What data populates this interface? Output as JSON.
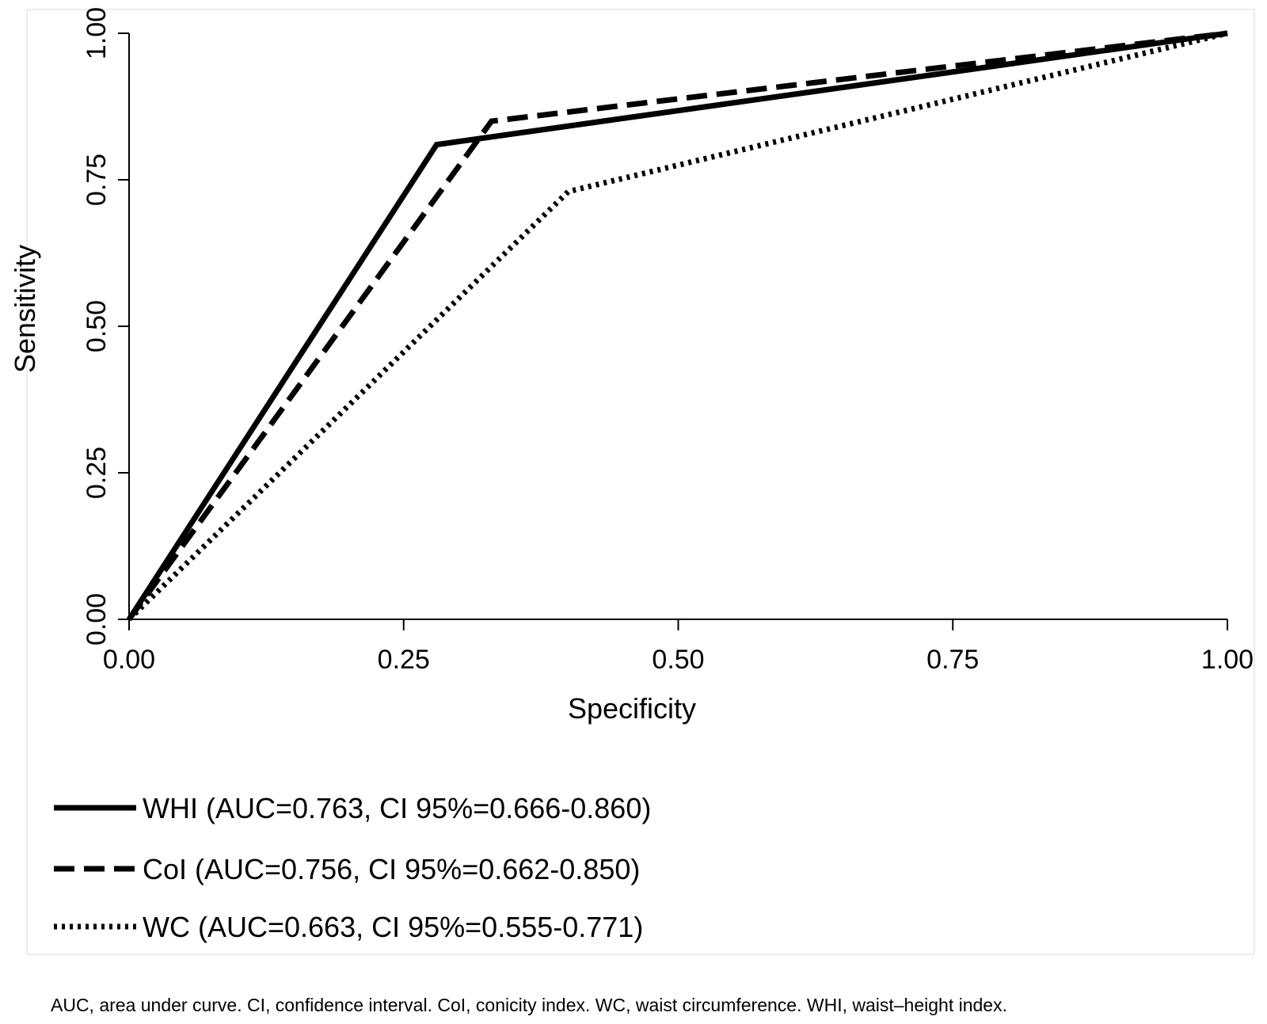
{
  "chart_data": {
    "type": "line",
    "title": "",
    "xlabel": "Specificity",
    "ylabel": "Sensitivity",
    "xlim": [
      0,
      1
    ],
    "ylim": [
      0,
      1
    ],
    "x_ticks": [
      "0.00",
      "0.25",
      "0.50",
      "0.75",
      "1.00"
    ],
    "y_ticks": [
      "0.00",
      "0.25",
      "0.50",
      "0.75",
      "1.00"
    ],
    "grid": false,
    "legend_position": "bottom",
    "series": [
      {
        "name": "WHI",
        "legend_label": "WHI (AUC=0.763, CI 95%=0.666-0.860)",
        "line_style": "solid",
        "x": [
          0.0,
          0.28,
          1.0
        ],
        "y": [
          0.0,
          0.81,
          1.0
        ]
      },
      {
        "name": "CoI",
        "legend_label": "CoI (AUC=0.756, CI 95%=0.662-0.850)",
        "line_style": "dashed",
        "x": [
          0.0,
          0.33,
          1.0
        ],
        "y": [
          0.0,
          0.85,
          1.0
        ]
      },
      {
        "name": "WC",
        "legend_label": "WC (AUC=0.663, CI 95%=0.555-0.771)",
        "line_style": "dotted",
        "x": [
          0.0,
          0.4,
          1.0
        ],
        "y": [
          0.0,
          0.73,
          1.0
        ]
      }
    ]
  },
  "footnote": "AUC, area under curve. CI, confidence interval. CoI, conicity index. WC, waist circumference. WHI, waist–height index.",
  "colors": {
    "line": "#000000",
    "frame": "#e6e6e6"
  }
}
